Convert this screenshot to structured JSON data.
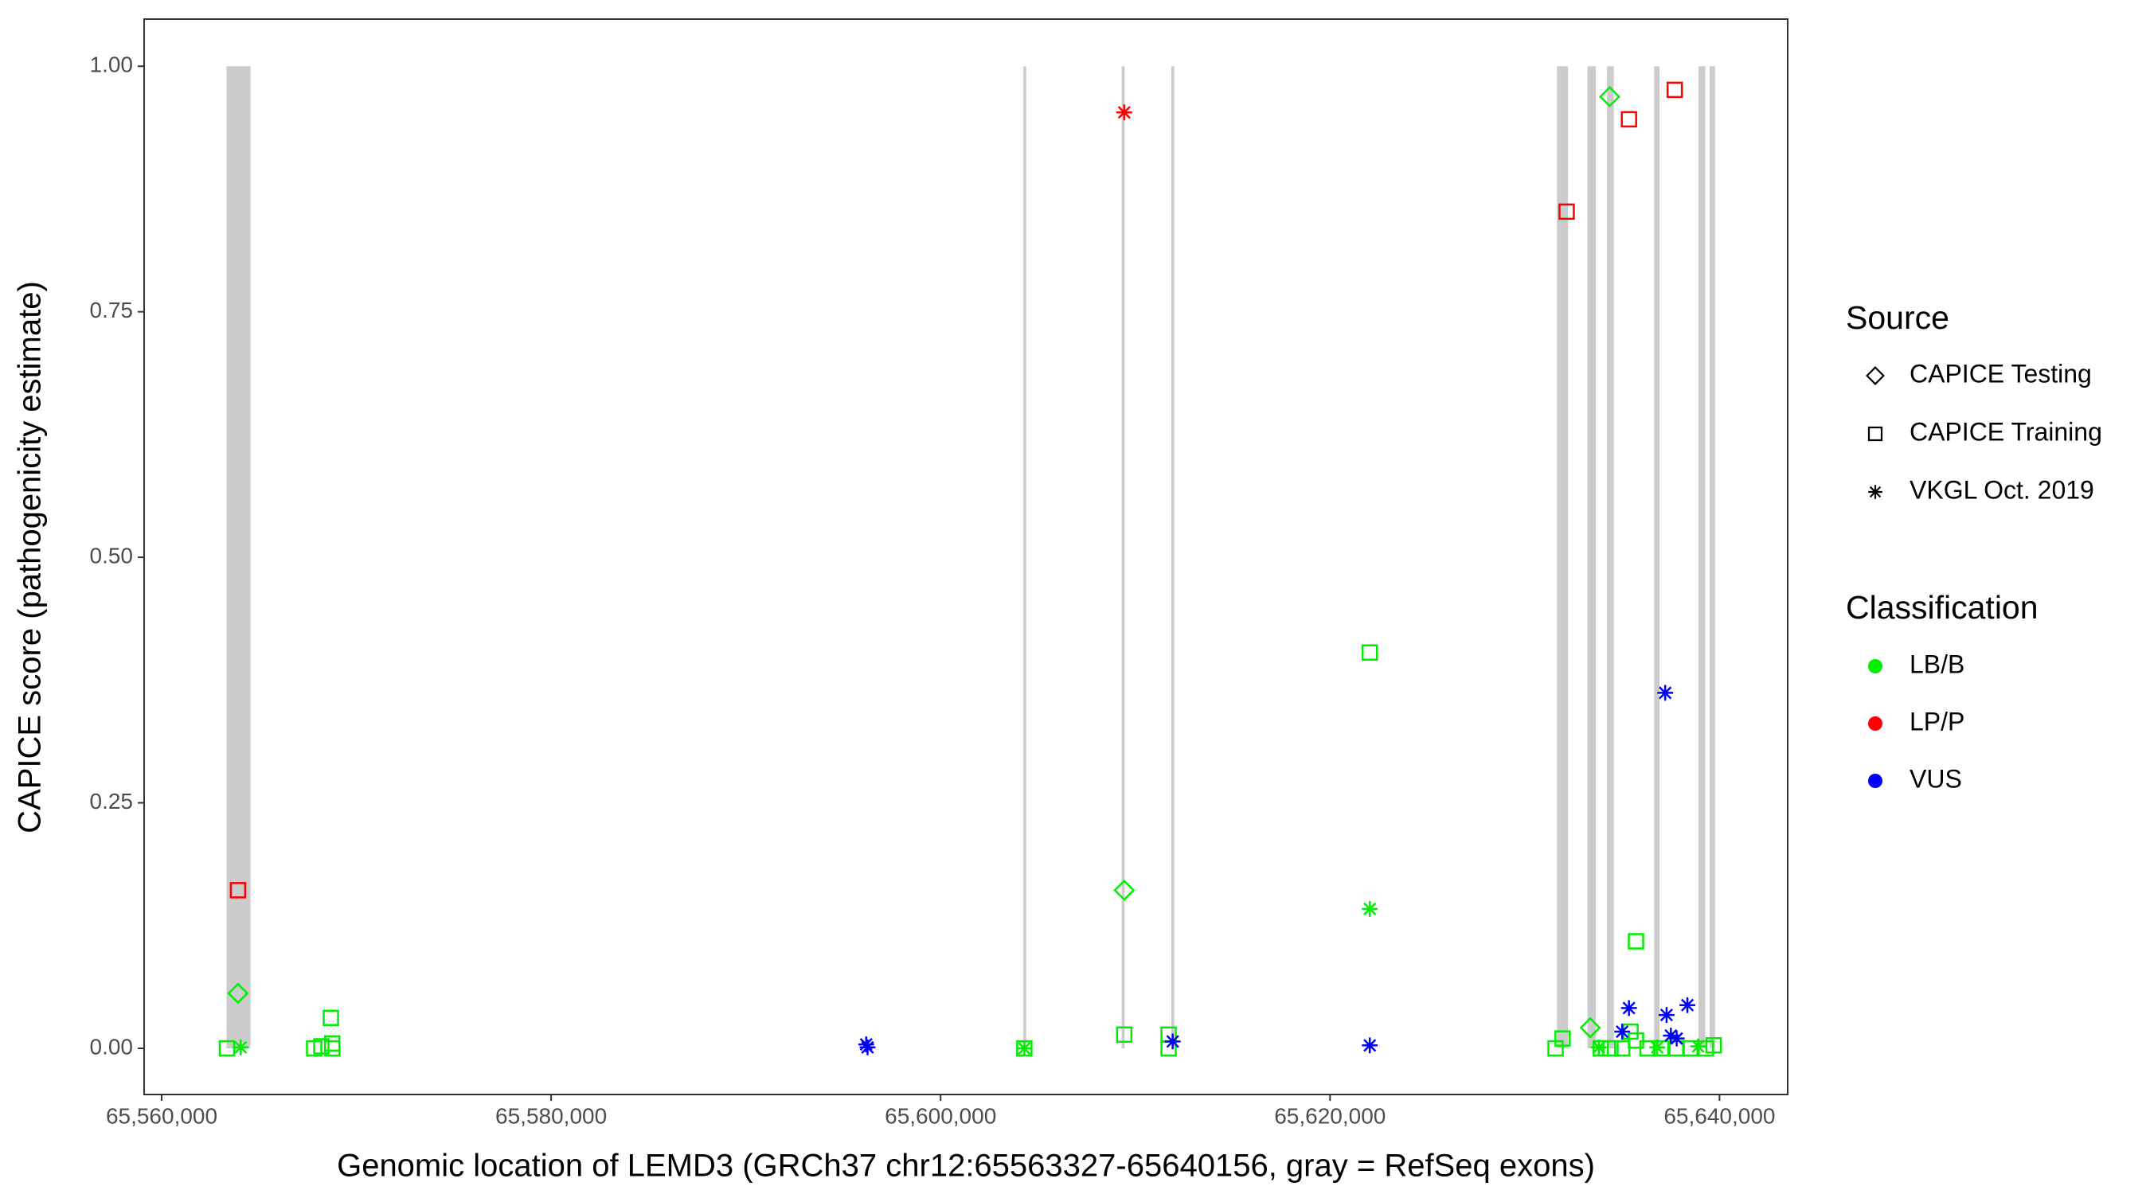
{
  "chart_data": {
    "type": "scatter",
    "x_label": "Genomic location of LEMD3 (GRCh37 chr12:65563327-65640156, gray = RefSeq exons)",
    "y_label": "CAPICE score (pathogenicity estimate)",
    "xlim": [
      65559100,
      65643500
    ],
    "ylim": [
      -0.047,
      1.048
    ],
    "xticks": [
      {
        "value": 65560000,
        "label": "65,560,000"
      },
      {
        "value": 65580000,
        "label": "65,580,000"
      },
      {
        "value": 65600000,
        "label": "65,600,000"
      },
      {
        "value": 65620000,
        "label": "65,620,000"
      },
      {
        "value": 65640000,
        "label": "65,640,000"
      }
    ],
    "yticks": [
      {
        "value": 0,
        "label": "0.00"
      },
      {
        "value": 0.25,
        "label": "0.25"
      },
      {
        "value": 0.5,
        "label": "0.50"
      },
      {
        "value": 0.75,
        "label": "0.75"
      },
      {
        "value": 1,
        "label": "1.00"
      }
    ],
    "grid": false,
    "exon_color": "#cccccc",
    "exons": [
      [
        65563330,
        65564560
      ],
      [
        65604250,
        65604400
      ],
      [
        65609300,
        65609450
      ],
      [
        65611850,
        65612000
      ],
      [
        65631650,
        65632220
      ],
      [
        65633220,
        65633650
      ],
      [
        65634220,
        65634570
      ],
      [
        65636640,
        65636920
      ],
      [
        65638920,
        65639270
      ],
      [
        65639490,
        65639770
      ]
    ],
    "shape_legend": {
      "title": "Source",
      "items": [
        {
          "label": "CAPICE Testing",
          "shape": "diamond"
        },
        {
          "label": "CAPICE Training",
          "shape": "square"
        },
        {
          "label": "VKGL Oct. 2019",
          "shape": "star"
        }
      ]
    },
    "color_legend": {
      "title": "Classification",
      "items": [
        {
          "label": "LB/B",
          "color": "#00ee00"
        },
        {
          "label": "LP/P",
          "color": "#ff0000"
        },
        {
          "label": "VUS",
          "color": "#0000ff"
        }
      ]
    },
    "series": [
      {
        "source": "CAPICE Testing",
        "classification": "LB/B",
        "x": [
          65563920,
          65609430,
          65634360,
          65633360
        ],
        "values": [
          0.056,
          0.161,
          0.969,
          0.021
        ]
      },
      {
        "source": "CAPICE Training",
        "classification": "LB/B",
        "x": [
          65563350,
          65567830,
          65568200,
          65568690,
          65568760,
          65568760,
          65604300,
          65609430,
          65611710,
          65611710,
          65622040,
          65631580,
          65631940,
          65633900,
          65634400,
          65635000,
          65635430,
          65635710,
          65635710,
          65636300,
          65637000,
          65637800,
          65638500,
          65639300,
          65639700
        ],
        "values": [
          0,
          0,
          0.002,
          0.031,
          0.005,
          0,
          0,
          0.014,
          0.014,
          0,
          0.403,
          0,
          0.01,
          0,
          0,
          0,
          0.017,
          0.109,
          0.008,
          0,
          0,
          0,
          0,
          0,
          0.003
        ]
      },
      {
        "source": "CAPICE Training",
        "classification": "LP/P",
        "x": [
          65563920,
          65632150,
          65635350,
          65637700
        ],
        "values": [
          0.161,
          0.852,
          0.946,
          0.976
        ]
      },
      {
        "source": "VKGL Oct. 2019",
        "classification": "LB/B",
        "x": [
          65564060,
          65604300,
          65622040,
          65633800,
          65636800,
          65638900
        ],
        "values": [
          0.001,
          0,
          0.142,
          0.001,
          0.001,
          0.002
        ]
      },
      {
        "source": "VKGL Oct. 2019",
        "classification": "LP/P",
        "x": [
          65609430
        ],
        "values": [
          0.953
        ]
      },
      {
        "source": "VKGL Oct. 2019",
        "classification": "VUS",
        "x": [
          65596180,
          65596250,
          65611920,
          65622040,
          65637210,
          65635350,
          65638350,
          65637280,
          65635000,
          65637500,
          65637800
        ],
        "values": [
          0.004,
          0.001,
          0.007,
          0.003,
          0.362,
          0.041,
          0.044,
          0.034,
          0.017,
          0.013,
          0.01
        ]
      }
    ]
  }
}
